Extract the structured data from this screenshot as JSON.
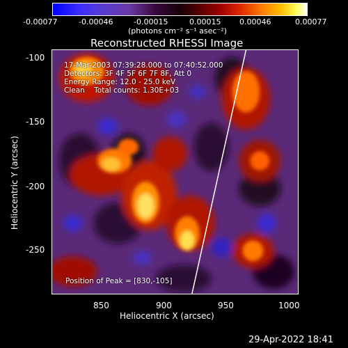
{
  "colorbar": {
    "ticks": [
      "-0.00077",
      "-0.00046",
      "-0.00015",
      "0.00015",
      "0.00046",
      "0.00077"
    ],
    "units_label": "(photons cm⁻² s⁻¹ asec⁻²)"
  },
  "plot": {
    "title": "Reconstructed RHESSI Image",
    "xlabel": "Heliocentric X (arcsec)",
    "ylabel": "Heliocentric Y (arcsec)",
    "xticks": [
      "850",
      "900",
      "950",
      "1000"
    ],
    "yticks": [
      "-100",
      "-150",
      "-200",
      "-250"
    ],
    "xlim": [
      811,
      1004
    ],
    "ylim": [
      -285,
      -96
    ]
  },
  "annotations": {
    "time_range": "17-Mar-2003 07:39:28.000 to 07:40:52.000",
    "detectors": "Detectors: 3F 4F 5F 6F 7F 8F, Att 0",
    "energy_range": "Energy Range: 12.0 - 25.0 keV",
    "method_counts": "Clean    Total counts: 1.30E+03",
    "peak_position": "Position of Peak = [830,-105]"
  },
  "footer": {
    "date": "29-Apr-2022 18:41"
  },
  "colors": {
    "background": "#000000",
    "limb_line": "#ffffff"
  }
}
